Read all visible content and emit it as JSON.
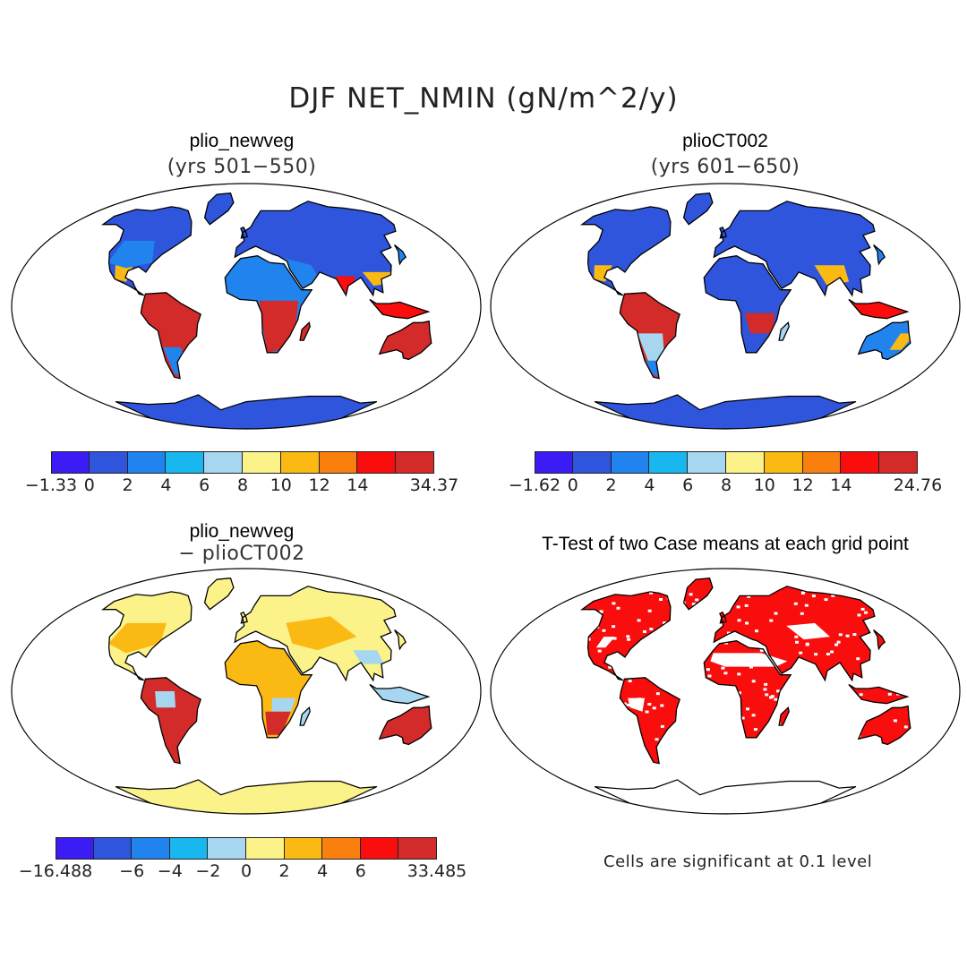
{
  "title": "DJF NET_NMIN (gN/m^2/y)",
  "panels": [
    {
      "id": "p1",
      "title": "plio_newveg",
      "subtitle": "(yrs 501−550)",
      "colorbar": {
        "colors": [
          "#3b1cf5",
          "#2e55dc",
          "#2083ee",
          "#18b7ef",
          "#a6d6f0",
          "#fbf38a",
          "#fbb914",
          "#f9800f",
          "#f90d0d",
          "#d32a2a"
        ],
        "labels": [
          "−1.33",
          "0",
          "2",
          "4",
          "6",
          "8",
          "10",
          "12",
          "14",
          "34.37"
        ]
      }
    },
    {
      "id": "p2",
      "title": "plioCT002",
      "subtitle": "(yrs 601−650)",
      "colorbar": {
        "colors": [
          "#3b1cf5",
          "#2e55dc",
          "#2083ee",
          "#18b7ef",
          "#a6d6f0",
          "#fbf38a",
          "#fbb914",
          "#f9800f",
          "#f90d0d",
          "#d32a2a"
        ],
        "labels": [
          "−1.62",
          "0",
          "2",
          "4",
          "6",
          "8",
          "10",
          "12",
          "14",
          "24.76"
        ]
      }
    },
    {
      "id": "p3",
      "title": "plio_newveg",
      "subtitle": "− plioCT002",
      "colorbar": {
        "colors": [
          "#3b1cf5",
          "#2e55dc",
          "#2083ee",
          "#18b7ef",
          "#a6d6f0",
          "#fbf38a",
          "#fbb914",
          "#f9800f",
          "#f90d0d",
          "#d32a2a"
        ],
        "labels": [
          "−16.488",
          "−6",
          "−4",
          "−2",
          "0",
          "2",
          "4",
          "6",
          "33.485"
        ]
      }
    },
    {
      "id": "p4",
      "title": "T-Test of two Case means at each grid point",
      "subtitle": ""
    }
  ],
  "footnote": "Cells are significant at 0.1 level"
}
